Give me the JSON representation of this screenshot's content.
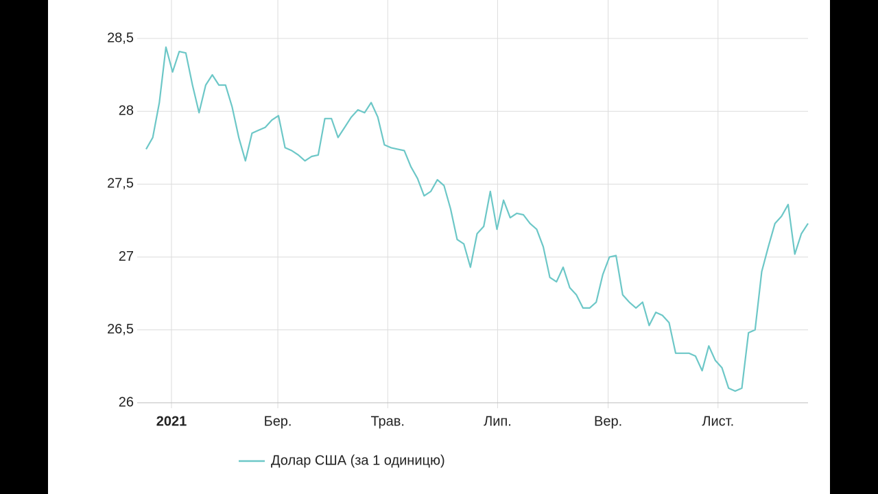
{
  "chart_data": {
    "type": "line",
    "series": [
      {
        "name": "Долар США (за 1 одиницю)",
        "color": "#6cc7c7",
        "values": [
          27.74,
          27.82,
          28.06,
          28.44,
          28.27,
          28.41,
          28.4,
          28.18,
          27.99,
          28.18,
          28.25,
          28.18,
          28.18,
          28.03,
          27.82,
          27.66,
          27.85,
          27.87,
          27.89,
          27.94,
          27.97,
          27.75,
          27.73,
          27.7,
          27.66,
          27.69,
          27.7,
          27.95,
          27.95,
          27.82,
          27.89,
          27.96,
          28.01,
          27.99,
          28.06,
          27.96,
          27.77,
          27.75,
          27.74,
          27.73,
          27.62,
          27.54,
          27.42,
          27.45,
          27.53,
          27.49,
          27.33,
          27.12,
          27.09,
          26.93,
          27.16,
          27.21,
          27.45,
          27.19,
          27.39,
          27.27,
          27.3,
          27.29,
          27.23,
          27.19,
          27.07,
          26.86,
          26.83,
          26.93,
          26.79,
          26.74,
          26.65,
          26.65,
          26.69,
          26.88,
          27.0,
          27.01,
          26.74,
          26.69,
          26.65,
          26.69,
          26.53,
          26.62,
          26.6,
          26.55,
          26.34,
          26.34,
          26.34,
          26.32,
          26.22,
          26.39,
          26.29,
          26.24,
          26.1,
          26.08,
          26.1,
          26.48,
          26.5,
          26.9,
          27.07,
          27.23,
          27.28,
          27.36,
          27.02,
          27.16,
          27.23
        ]
      }
    ],
    "xlim": [
      0,
      100
    ],
    "xticks": [
      {
        "value": 3.83,
        "label": "2021"
      },
      {
        "value": 19.9,
        "label": "Бер."
      },
      {
        "value": 36.5,
        "label": "Трав."
      },
      {
        "value": 53.1,
        "label": "Лип."
      },
      {
        "value": 69.8,
        "label": "Вер."
      },
      {
        "value": 86.4,
        "label": "Лист."
      }
    ],
    "ylim": [
      26,
      28.5
    ],
    "yticks": [
      26,
      {
        "value": 26.5,
        "label": "26,5"
      },
      27,
      {
        "value": 27.5,
        "label": "27,5"
      },
      28,
      {
        "value": 28.5,
        "label": "28,5"
      }
    ],
    "grid": true,
    "legend": "bottom"
  }
}
